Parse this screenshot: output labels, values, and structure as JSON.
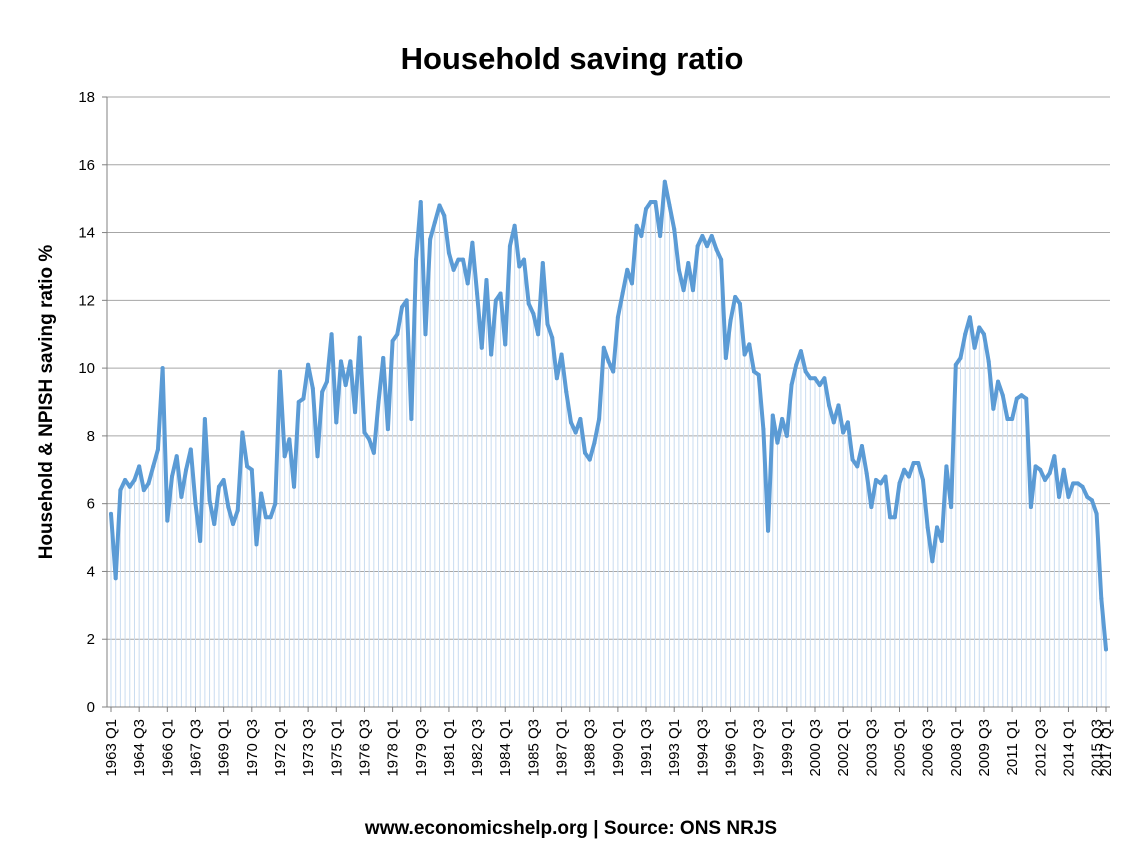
{
  "chart_data": {
    "type": "area",
    "title": "Household saving ratio",
    "xlabel": "",
    "ylabel": "Household & NPISH saving ratio %",
    "source": "www.economicshelp.org | Source: ONS NRJS",
    "ylim": [
      0,
      18
    ],
    "yticks": [
      0,
      2,
      4,
      6,
      8,
      10,
      12,
      14,
      16,
      18
    ],
    "x_start": "1963 Q1",
    "x_end": "2017 Q1",
    "xtick_labels": [
      "1963 Q1",
      "1964 Q3",
      "1966 Q1",
      "1967 Q3",
      "1969 Q1",
      "1970 Q3",
      "1972 Q1",
      "1973 Q3",
      "1975 Q1",
      "1976 Q3",
      "1978 Q1",
      "1979 Q3",
      "1981 Q1",
      "1982 Q3",
      "1984 Q1",
      "1985 Q3",
      "1987 Q1",
      "1988 Q3",
      "1990 Q1",
      "1991 Q3",
      "1993 Q1",
      "1994 Q3",
      "1996 Q1",
      "1997 Q3",
      "1999 Q1",
      "2000 Q3",
      "2002 Q1",
      "2003 Q3",
      "2005 Q1",
      "2006 Q3",
      "2008 Q1",
      "2009 Q3",
      "2011 Q1",
      "2012 Q3",
      "2014 Q1",
      "2015 Q3",
      "2017 Q1"
    ],
    "grid": true,
    "legend": "none",
    "colors": {
      "line": "#5b9bd5",
      "fill": "#c9dcf0",
      "grid": "#a6a6a6",
      "axis": "#808080"
    },
    "values": [
      5.7,
      3.8,
      6.4,
      6.7,
      6.5,
      6.7,
      7.1,
      6.4,
      6.6,
      7.1,
      7.6,
      10.0,
      5.5,
      6.8,
      7.4,
      6.2,
      7.0,
      7.6,
      6.0,
      4.9,
      8.5,
      6.1,
      5.4,
      6.5,
      6.7,
      5.9,
      5.4,
      5.8,
      8.1,
      7.1,
      7.0,
      4.8,
      6.3,
      5.6,
      5.6,
      6.0,
      9.9,
      7.4,
      7.9,
      6.5,
      9.0,
      9.1,
      10.1,
      9.4,
      7.4,
      9.3,
      9.6,
      11.0,
      8.4,
      10.2,
      9.5,
      10.2,
      8.7,
      10.9,
      8.1,
      7.9,
      7.5,
      9.0,
      10.3,
      8.2,
      10.8,
      11.0,
      11.8,
      12.0,
      8.5,
      13.2,
      14.9,
      11.0,
      13.8,
      14.3,
      14.8,
      14.5,
      13.4,
      12.9,
      13.2,
      13.2,
      12.5,
      13.7,
      12.2,
      10.6,
      12.6,
      10.4,
      12.0,
      12.2,
      10.7,
      13.6,
      14.2,
      13.0,
      13.2,
      11.9,
      11.6,
      11.0,
      13.1,
      11.3,
      10.9,
      9.7,
      10.4,
      9.3,
      8.4,
      8.1,
      8.5,
      7.5,
      7.3,
      7.8,
      8.5,
      10.6,
      10.2,
      9.9,
      11.5,
      12.2,
      12.9,
      12.5,
      14.2,
      13.9,
      14.7,
      14.9,
      14.9,
      13.9,
      15.5,
      14.8,
      14.1,
      12.9,
      12.3,
      13.1,
      12.3,
      13.6,
      13.9,
      13.6,
      13.9,
      13.5,
      13.2,
      10.3,
      11.4,
      12.1,
      11.9,
      10.4,
      10.7,
      9.9,
      9.8,
      8.2,
      5.2,
      8.6,
      7.8,
      8.5,
      8.0,
      9.5,
      10.1,
      10.5,
      9.9,
      9.7,
      9.7,
      9.5,
      9.7,
      8.9,
      8.4,
      8.9,
      8.1,
      8.4,
      7.3,
      7.1,
      7.7,
      6.9,
      5.9,
      6.7,
      6.6,
      6.8,
      5.6,
      5.6,
      6.6,
      7.0,
      6.8,
      7.2,
      7.2,
      6.7,
      5.3,
      4.3,
      5.3,
      4.9,
      7.1,
      5.9,
      10.1,
      10.3,
      11.0,
      11.5,
      10.6,
      11.2,
      11.0,
      10.2,
      8.8,
      9.6,
      9.2,
      8.5,
      8.5,
      9.1,
      9.2,
      9.1,
      5.9,
      7.1,
      7.0,
      6.7,
      6.9,
      7.4,
      6.2,
      7.0,
      6.2,
      6.6,
      6.6,
      6.5,
      6.2,
      6.1,
      5.7,
      3.2,
      1.7
    ]
  }
}
